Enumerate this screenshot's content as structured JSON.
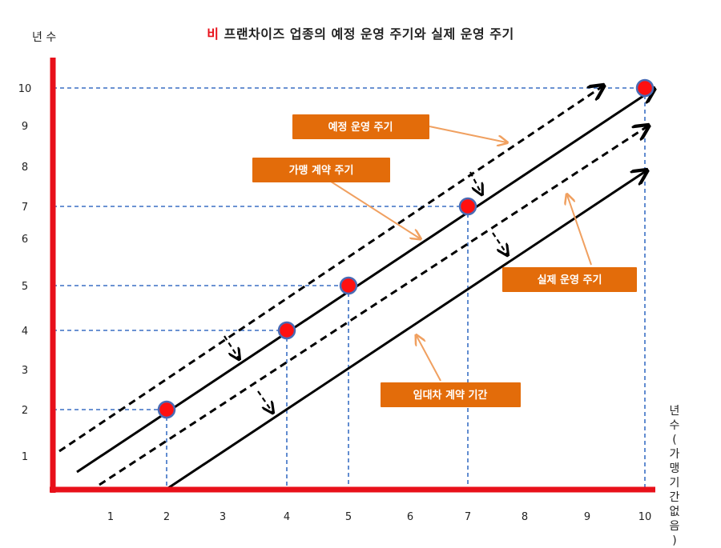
{
  "title": {
    "highlight": "비",
    "rest": "프랜차이즈 업종의 예정 운영 주기와 실제 운영 주기"
  },
  "axes": {
    "y_label": "년 수",
    "x_label_chars": [
      "년",
      "수",
      "(",
      "가",
      "맹",
      "기",
      "간",
      "없",
      "음",
      ")"
    ],
    "x_ticks": [
      "1",
      "2",
      "3",
      "4",
      "5",
      "6",
      "7",
      "8",
      "9",
      "10"
    ],
    "y_ticks": [
      "1",
      "2",
      "3",
      "4",
      "5",
      "6",
      "7",
      "8",
      "9",
      "10"
    ],
    "range": [
      0,
      10
    ]
  },
  "points": [
    {
      "x": 2,
      "y": 2
    },
    {
      "x": 4,
      "y": 4
    },
    {
      "x": 5,
      "y": 5
    },
    {
      "x": 7,
      "y": 7
    },
    {
      "x": 10,
      "y": 10
    }
  ],
  "labels": {
    "planned": "예정 운영 주기",
    "franchise": "가맹 계약 주기",
    "actual": "실제 운영 주기",
    "lease": "임대차 계약 기간"
  },
  "colors": {
    "axis": "#e8101a",
    "point_fill": "#ff1010",
    "point_stroke": "#4a6bb5",
    "guide": "#3a6fc4",
    "label_box": "#e36c0a",
    "callout": "#f0a060",
    "line": "#000000"
  }
}
